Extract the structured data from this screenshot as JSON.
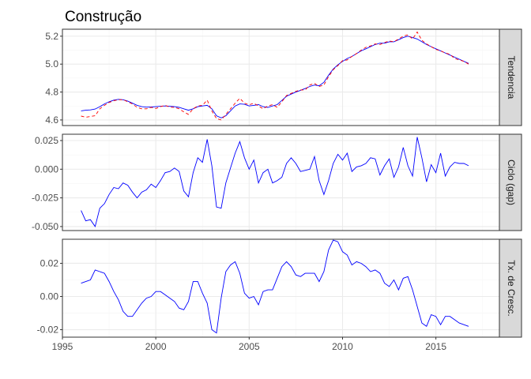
{
  "chart_data": {
    "type": "line",
    "title": "Construção",
    "xlabel": "",
    "ylabel": "",
    "xlim": [
      1995.0,
      2018.4
    ],
    "x_ticks": [
      1995,
      2000,
      2005,
      2010,
      2015
    ],
    "grid": true,
    "colors": {
      "main": "#0000ff",
      "reference": "#ff0000",
      "panel_border": "#333333",
      "strip_bg": "#d9d9d9",
      "grid_major": "#ebebeb",
      "grid_minor": "#f5f5f5"
    },
    "x": [
      1996.0,
      1996.25,
      1996.5,
      1996.75,
      1997.0,
      1997.25,
      1997.5,
      1997.75,
      1998.0,
      1998.25,
      1998.5,
      1998.75,
      1999.0,
      1999.25,
      1999.5,
      1999.75,
      2000.0,
      2000.25,
      2000.5,
      2000.75,
      2001.0,
      2001.25,
      2001.5,
      2001.75,
      2002.0,
      2002.25,
      2002.5,
      2002.75,
      2003.0,
      2003.25,
      2003.5,
      2003.75,
      2004.0,
      2004.25,
      2004.5,
      2004.75,
      2005.0,
      2005.25,
      2005.5,
      2005.75,
      2006.0,
      2006.25,
      2006.5,
      2006.75,
      2007.0,
      2007.25,
      2007.5,
      2007.75,
      2008.0,
      2008.25,
      2008.5,
      2008.75,
      2009.0,
      2009.25,
      2009.5,
      2009.75,
      2010.0,
      2010.25,
      2010.5,
      2010.75,
      2011.0,
      2011.25,
      2011.5,
      2011.75,
      2012.0,
      2012.25,
      2012.5,
      2012.75,
      2013.0,
      2013.25,
      2013.5,
      2013.75,
      2014.0,
      2014.25,
      2014.5,
      2014.75,
      2015.0,
      2015.25,
      2015.5,
      2015.75,
      2016.0,
      2016.25,
      2016.5,
      2016.75
    ],
    "panels": [
      {
        "strip": "Tendencia",
        "ylim": [
          4.56,
          5.25
        ],
        "y_ticks": [
          4.6,
          4.8,
          5.0,
          5.2
        ],
        "y_tick_labels": [
          "4.6",
          "4.8",
          "5.0",
          "5.2"
        ],
        "series": [
          {
            "role": "trend",
            "color": "#0000ff",
            "dash": false,
            "values": [
              4.665,
              4.67,
              4.672,
              4.678,
              4.695,
              4.715,
              4.73,
              4.742,
              4.748,
              4.745,
              4.735,
              4.72,
              4.705,
              4.695,
              4.692,
              4.693,
              4.695,
              4.698,
              4.7,
              4.698,
              4.695,
              4.69,
              4.68,
              4.67,
              4.68,
              4.695,
              4.7,
              4.705,
              4.68,
              4.63,
              4.615,
              4.63,
              4.665,
              4.7,
              4.715,
              4.712,
              4.7,
              4.705,
              4.71,
              4.695,
              4.69,
              4.7,
              4.71,
              4.74,
              4.77,
              4.785,
              4.8,
              4.812,
              4.825,
              4.84,
              4.85,
              4.845,
              4.87,
              4.92,
              4.965,
              4.995,
              5.02,
              5.04,
              5.055,
              5.075,
              5.095,
              5.11,
              5.125,
              5.14,
              5.15,
              5.15,
              5.16,
              5.16,
              5.175,
              5.19,
              5.2,
              5.19,
              5.18,
              5.16,
              5.14,
              5.125,
              5.11,
              5.095,
              5.08,
              5.065,
              5.05,
              5.035,
              5.02,
              5.005
            ]
          },
          {
            "role": "observed",
            "color": "#ff0000",
            "dash": true,
            "values": [
              4.628,
              4.62,
              4.625,
              4.63,
              4.68,
              4.705,
              4.725,
              4.738,
              4.745,
              4.745,
              4.73,
              4.715,
              4.69,
              4.68,
              4.68,
              4.69,
              4.682,
              4.695,
              4.705,
              4.692,
              4.69,
              4.68,
              4.658,
              4.64,
              4.68,
              4.7,
              4.705,
              4.742,
              4.665,
              4.61,
              4.6,
              4.64,
              4.68,
              4.72,
              4.755,
              4.72,
              4.708,
              4.72,
              4.7,
              4.68,
              4.7,
              4.71,
              4.69,
              4.73,
              4.775,
              4.79,
              4.805,
              4.815,
              4.815,
              4.85,
              4.862,
              4.84,
              4.85,
              4.91,
              4.96,
              4.99,
              5.025,
              5.03,
              5.055,
              5.075,
              5.1,
              5.12,
              5.13,
              5.145,
              5.14,
              5.155,
              5.165,
              5.16,
              5.18,
              5.2,
              5.21,
              5.18,
              5.23,
              5.17,
              5.145,
              5.125,
              5.105,
              5.095,
              5.08,
              5.07,
              5.04,
              5.03,
              5.02,
              5.0
            ]
          }
        ]
      },
      {
        "strip": "Ciclo (gap)",
        "ylim": [
          -0.0535,
          0.0305
        ],
        "y_ticks": [
          -0.05,
          -0.025,
          0.0,
          0.025
        ],
        "y_tick_labels": [
          "-0.050",
          "-0.025",
          "0.000",
          "0.025"
        ],
        "series": [
          {
            "role": "cycle",
            "color": "#0000ff",
            "dash": false,
            "values": [
              -0.036,
              -0.045,
              -0.044,
              -0.05,
              -0.034,
              -0.03,
              -0.022,
              -0.016,
              -0.017,
              -0.012,
              -0.014,
              -0.02,
              -0.025,
              -0.02,
              -0.018,
              -0.013,
              -0.016,
              -0.01,
              -0.003,
              -0.002,
              0.001,
              -0.002,
              -0.019,
              -0.024,
              -0.003,
              0.01,
              0.006,
              0.026,
              0.003,
              -0.033,
              -0.034,
              -0.012,
              0.001,
              0.014,
              0.024,
              0.01,
              0.0,
              0.008,
              -0.012,
              -0.003,
              0.0,
              -0.012,
              -0.01,
              -0.007,
              0.005,
              0.01,
              0.005,
              -0.002,
              -0.001,
              0.0,
              0.011,
              -0.01,
              -0.022,
              -0.01,
              0.005,
              0.013,
              0.008,
              0.014,
              -0.002,
              0.002,
              0.003,
              0.005,
              0.01,
              0.009,
              -0.005,
              0.003,
              0.009,
              -0.007,
              0.002,
              0.019,
              0.003,
              -0.006,
              0.028,
              0.01,
              -0.011,
              0.004,
              -0.003,
              0.014,
              -0.006,
              0.002,
              0.006,
              0.005,
              0.005,
              0.003
            ]
          }
        ]
      },
      {
        "strip": "Tx. de Cresc.",
        "ylim": [
          -0.0245,
          0.0345
        ],
        "y_ticks": [
          -0.02,
          0.0,
          0.02
        ],
        "y_tick_labels": [
          "-0.02",
          "0.00",
          "0.02"
        ],
        "series": [
          {
            "role": "growth",
            "color": "#0000ff",
            "dash": false,
            "values": [
              0.008,
              0.009,
              0.01,
              0.016,
              0.015,
              0.014,
              0.009,
              0.003,
              -0.002,
              -0.009,
              -0.012,
              -0.012,
              -0.008,
              -0.004,
              -0.001,
              0.0,
              0.003,
              0.003,
              0.001,
              -0.001,
              -0.003,
              -0.007,
              -0.008,
              -0.003,
              0.009,
              0.009,
              0.002,
              -0.004,
              -0.02,
              -0.022,
              -0.001,
              0.015,
              0.019,
              0.021,
              0.014,
              0.002,
              -0.001,
              0.0,
              -0.005,
              0.003,
              0.004,
              0.004,
              0.011,
              0.018,
              0.021,
              0.018,
              0.013,
              0.012,
              0.014,
              0.014,
              0.014,
              0.009,
              0.015,
              0.028,
              0.034,
              0.033,
              0.027,
              0.025,
              0.019,
              0.021,
              0.02,
              0.018,
              0.015,
              0.016,
              0.014,
              0.008,
              0.006,
              0.01,
              0.004,
              0.011,
              0.012,
              0.004,
              -0.006,
              -0.016,
              -0.018,
              -0.011,
              -0.012,
              -0.017,
              -0.012,
              -0.012,
              -0.014,
              -0.016,
              -0.017,
              -0.018
            ]
          }
        ]
      }
    ]
  }
}
